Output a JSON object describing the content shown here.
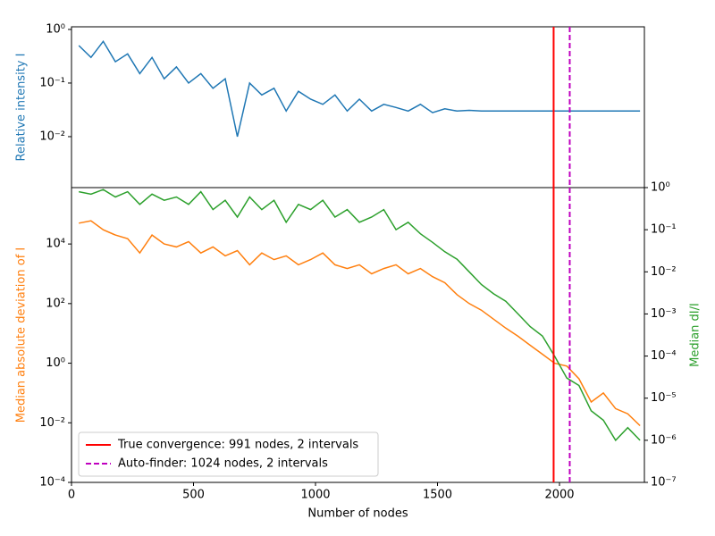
{
  "chart_data": [
    {
      "type": "line",
      "ylabel": "Relative intensity I",
      "log_y": true,
      "xlim": [
        0,
        2348
      ],
      "ylim": [
        0.00112,
        1.12
      ],
      "yticks": [
        {
          "value": 1,
          "label": "10⁰"
        },
        {
          "value": 0.1,
          "label": "10⁻¹"
        },
        {
          "value": 0.01,
          "label": "10⁻²"
        }
      ],
      "x": [
        30,
        80,
        130,
        180,
        230,
        280,
        330,
        380,
        430,
        480,
        530,
        580,
        630,
        680,
        730,
        780,
        830,
        880,
        930,
        980,
        1030,
        1080,
        1130,
        1180,
        1230,
        1280,
        1330,
        1380,
        1430,
        1480,
        1530,
        1580,
        1630,
        1680,
        1730,
        1780,
        1830,
        1880,
        1930,
        1980,
        2030,
        2080,
        2130,
        2180,
        2230,
        2280,
        2330
      ],
      "series": [
        {
          "color": "#1f77b4",
          "values": [
            0.5,
            0.3,
            0.6,
            0.25,
            0.35,
            0.15,
            0.3,
            0.12,
            0.2,
            0.1,
            0.15,
            0.08,
            0.12,
            0.01,
            0.1,
            0.06,
            0.08,
            0.03,
            0.07,
            0.05,
            0.04,
            0.06,
            0.03,
            0.05,
            0.03,
            0.04,
            0.035,
            0.03,
            0.04,
            0.028,
            0.033,
            0.03,
            0.031,
            0.03,
            0.03,
            0.03,
            0.03,
            0.03,
            0.03,
            0.03,
            0.03,
            0.03,
            0.03,
            0.03,
            0.03,
            0.03,
            0.03
          ]
        }
      ]
    },
    {
      "type": "line",
      "xlabel": "Number of nodes",
      "ylabel": "Median absolute deviation of I",
      "y2label": "Median dI/I",
      "log_y": true,
      "xlim": [
        0,
        2348
      ],
      "xticks": [
        0,
        500,
        1000,
        1500,
        2000
      ],
      "ylim": [
        0.0001,
        780000
      ],
      "yticks": [
        {
          "value": 0.0001,
          "label": "10⁻⁴"
        },
        {
          "value": 0.01,
          "label": "10⁻²"
        },
        {
          "value": 1,
          "label": "10⁰"
        },
        {
          "value": 100,
          "label": "10²"
        },
        {
          "value": 10000,
          "label": "10⁴"
        }
      ],
      "y2lim": [
        1e-07,
        1
      ],
      "y2ticks": [
        {
          "value": 1,
          "label": "10⁰"
        },
        {
          "value": 0.1,
          "label": "10⁻¹"
        },
        {
          "value": 0.01,
          "label": "10⁻²"
        },
        {
          "value": 0.001,
          "label": "10⁻³"
        },
        {
          "value": 0.0001,
          "label": "10⁻⁴"
        },
        {
          "value": 1e-05,
          "label": "10⁻⁵"
        },
        {
          "value": 1e-06,
          "label": "10⁻⁶"
        },
        {
          "value": 1e-07,
          "label": "10⁻⁷"
        }
      ],
      "x": [
        30,
        80,
        130,
        180,
        230,
        280,
        330,
        380,
        430,
        480,
        530,
        580,
        630,
        680,
        730,
        780,
        830,
        880,
        930,
        980,
        1030,
        1080,
        1130,
        1180,
        1230,
        1280,
        1330,
        1380,
        1430,
        1480,
        1530,
        1580,
        1630,
        1680,
        1730,
        1780,
        1830,
        1880,
        1930,
        1980,
        2030,
        2080,
        2130,
        2180,
        2230,
        2280,
        2330
      ],
      "series": [
        {
          "color": "#ff7f0e",
          "values": [
            50000,
            60000,
            30000,
            20000,
            15000,
            5000,
            20000,
            10000,
            8000,
            12000,
            5000,
            8000,
            4000,
            6000,
            2000,
            5000,
            3000,
            4000,
            2000,
            3000,
            5000,
            2000,
            1500,
            2000,
            1000,
            1500,
            2000,
            1000,
            1500,
            800,
            500,
            200,
            100,
            60,
            30,
            15,
            8,
            4,
            2,
            1,
            0.8,
            0.3,
            0.05,
            0.1,
            0.03,
            0.02,
            0.008
          ]
        },
        {
          "color": "#2ca02c",
          "axis": "y2",
          "values": [
            0.8,
            0.7,
            0.9,
            0.6,
            0.8,
            0.4,
            0.7,
            0.5,
            0.6,
            0.4,
            0.8,
            0.3,
            0.5,
            0.2,
            0.6,
            0.3,
            0.5,
            0.15,
            0.4,
            0.3,
            0.5,
            0.2,
            0.3,
            0.15,
            0.2,
            0.3,
            0.1,
            0.15,
            0.08,
            0.05,
            0.03,
            0.02,
            0.01,
            0.005,
            0.003,
            0.002,
            0.001,
            0.0005,
            0.0003,
            0.0001,
            3e-05,
            2e-05,
            5e-06,
            3e-06,
            1e-06,
            2e-06,
            1e-06
          ]
        }
      ],
      "reference_lines": [
        {
          "name": "True convergence: 991 nodes, 2 intervals",
          "x": 1976,
          "color": "#ff0000",
          "dashed": false
        },
        {
          "name": "Auto-finder: 1024 nodes, 2 intervals",
          "x": 2042,
          "color": "#bf00bf",
          "dashed": true
        }
      ],
      "legend": "lower left"
    }
  ]
}
